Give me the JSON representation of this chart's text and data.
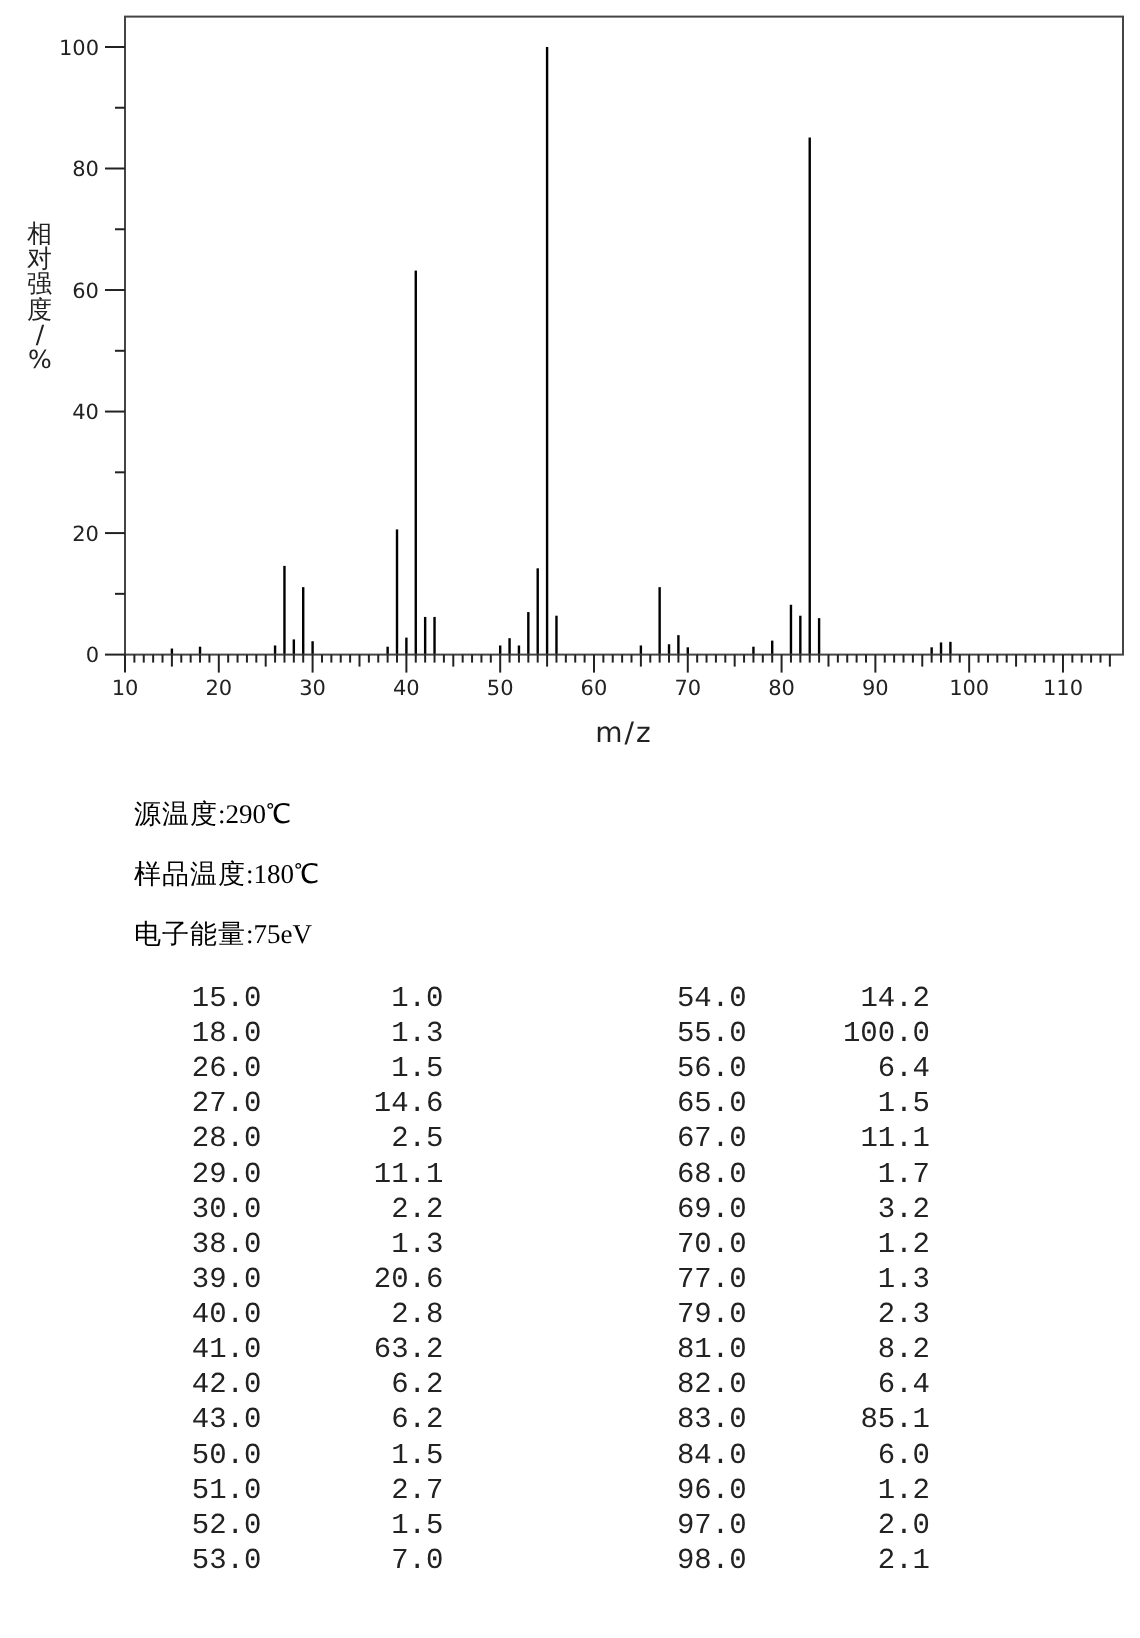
{
  "chart_data": [
    {
      "type": "bar",
      "xlabel": "m/z",
      "ylabel": "相对强度/%",
      "x": [
        15,
        18,
        26,
        27,
        28,
        29,
        30,
        38,
        39,
        40,
        41,
        42,
        43,
        50,
        51,
        52,
        53,
        54,
        55,
        56,
        65,
        67,
        68,
        69,
        70,
        77,
        79,
        81,
        82,
        83,
        84,
        96,
        97,
        98
      ],
      "values": [
        1.0,
        1.3,
        1.5,
        14.6,
        2.5,
        11.1,
        2.2,
        1.3,
        20.6,
        2.8,
        63.2,
        6.2,
        6.2,
        1.5,
        2.7,
        1.5,
        7.0,
        14.2,
        100.0,
        6.4,
        1.5,
        11.1,
        1.7,
        3.2,
        1.2,
        1.3,
        2.3,
        8.2,
        6.4,
        85.1,
        6.0,
        1.2,
        2.0,
        2.1
      ],
      "color": "#000000",
      "xlim": [
        10,
        116.4
      ],
      "ylim": [
        0,
        105
      ],
      "xticks": [
        10,
        {
          "value": 11,
          "label": null
        },
        {
          "value": 12,
          "label": null
        },
        {
          "value": 13,
          "label": null
        },
        {
          "value": 14,
          "label": null
        },
        {
          "value": 15,
          "label": null
        },
        {
          "value": 16,
          "label": null
        },
        {
          "value": 17,
          "label": null
        },
        {
          "value": 18,
          "label": null
        },
        {
          "value": 19,
          "label": null
        },
        20,
        {
          "value": 21,
          "label": null
        },
        {
          "value": 22,
          "label": null
        },
        {
          "value": 23,
          "label": null
        },
        {
          "value": 24,
          "label": null
        },
        {
          "value": 25,
          "label": null
        },
        {
          "value": 26,
          "label": null
        },
        {
          "value": 27,
          "label": null
        },
        {
          "value": 28,
          "label": null
        },
        {
          "value": 29,
          "label": null
        },
        30,
        {
          "value": 31,
          "label": null
        },
        {
          "value": 32,
          "label": null
        },
        {
          "value": 33,
          "label": null
        },
        {
          "value": 34,
          "label": null
        },
        {
          "value": 35,
          "label": null
        },
        {
          "value": 36,
          "label": null
        },
        {
          "value": 37,
          "label": null
        },
        {
          "value": 38,
          "label": null
        },
        {
          "value": 39,
          "label": null
        },
        40,
        {
          "value": 41,
          "label": null
        },
        {
          "value": 42,
          "label": null
        },
        {
          "value": 43,
          "label": null
        },
        {
          "value": 44,
          "label": null
        },
        {
          "value": 45,
          "label": null
        },
        {
          "value": 46,
          "label": null
        },
        {
          "value": 47,
          "label": null
        },
        {
          "value": 48,
          "label": null
        },
        {
          "value": 49,
          "label": null
        },
        50,
        {
          "value": 51,
          "label": null
        },
        {
          "value": 52,
          "label": null
        },
        {
          "value": 53,
          "label": null
        },
        {
          "value": 54,
          "label": null
        },
        {
          "value": 55,
          "label": null
        },
        {
          "value": 56,
          "label": null
        },
        {
          "value": 57,
          "label": null
        },
        {
          "value": 58,
          "label": null
        },
        {
          "value": 59,
          "label": null
        },
        60,
        {
          "value": 61,
          "label": null
        },
        {
          "value": 62,
          "label": null
        },
        {
          "value": 63,
          "label": null
        },
        {
          "value": 64,
          "label": null
        },
        {
          "value": 65,
          "label": null
        },
        {
          "value": 66,
          "label": null
        },
        {
          "value": 67,
          "label": null
        },
        {
          "value": 68,
          "label": null
        },
        {
          "value": 69,
          "label": null
        },
        70,
        {
          "value": 71,
          "label": null
        },
        {
          "value": 72,
          "label": null
        },
        {
          "value": 73,
          "label": null
        },
        {
          "value": 74,
          "label": null
        },
        {
          "value": 75,
          "label": null
        },
        {
          "value": 76,
          "label": null
        },
        {
          "value": 77,
          "label": null
        },
        {
          "value": 78,
          "label": null
        },
        {
          "value": 79,
          "label": null
        },
        80,
        {
          "value": 81,
          "label": null
        },
        {
          "value": 82,
          "label": null
        },
        {
          "value": 83,
          "label": null
        },
        {
          "value": 84,
          "label": null
        },
        {
          "value": 85,
          "label": null
        },
        {
          "value": 86,
          "label": null
        },
        {
          "value": 87,
          "label": null
        },
        {
          "value": 88,
          "label": null
        },
        {
          "value": 89,
          "label": null
        },
        90,
        {
          "value": 91,
          "label": null
        },
        {
          "value": 92,
          "label": null
        },
        {
          "value": 93,
          "label": null
        },
        {
          "value": 94,
          "label": null
        },
        {
          "value": 95,
          "label": null
        },
        {
          "value": 96,
          "label": null
        },
        {
          "value": 97,
          "label": null
        },
        {
          "value": 98,
          "label": null
        },
        {
          "value": 99,
          "label": null
        },
        100,
        {
          "value": 101,
          "label": null
        },
        {
          "value": 102,
          "label": null
        },
        {
          "value": 103,
          "label": null
        },
        {
          "value": 104,
          "label": null
        },
        {
          "value": 105,
          "label": null
        },
        {
          "value": 106,
          "label": null
        },
        {
          "value": 107,
          "label": null
        },
        {
          "value": 108,
          "label": null
        },
        {
          "value": 109,
          "label": null
        },
        110,
        {
          "value": 111,
          "label": null
        },
        {
          "value": 112,
          "label": null
        },
        {
          "value": 113,
          "label": null
        },
        {
          "value": 114,
          "label": null
        },
        {
          "value": 115,
          "label": null
        }
      ],
      "yticks": [
        0,
        {
          "value": 10,
          "label": null
        },
        20,
        {
          "value": 30,
          "label": null
        },
        40,
        {
          "value": 50,
          "label": null
        },
        60,
        {
          "value": 70,
          "label": null
        },
        80,
        {
          "value": 90,
          "label": null
        },
        100
      ],
      "annotations": [
        "源温度:290℃",
        "样品温度:180℃",
        "电子能量:75eV"
      ]
    },
    {
      "type": "other",
      "annotations": [
        "15.0",
        "1.0",
        "54.0",
        "14.2",
        "18.0",
        "1.3",
        "55.0",
        "100.0",
        "26.0",
        "1.5",
        "56.0",
        "6.4",
        "27.0",
        "14.6",
        "65.0",
        "1.5",
        "28.0",
        "2.5",
        "67.0",
        "11.1",
        "29.0",
        "11.1",
        "68.0",
        "1.7",
        "30.0",
        "2.2",
        "69.0",
        "3.2",
        "38.0",
        "1.3",
        "70.0",
        "1.2",
        "39.0",
        "20.6",
        "77.0",
        "1.3",
        "40.0",
        "2.8",
        "79.0",
        "2.3",
        "41.0",
        "63.2",
        "81.0",
        "8.2",
        "42.0",
        "6.2",
        "82.0",
        "6.4",
        "43.0",
        "6.2",
        "83.0",
        "85.1",
        "50.0",
        "1.5",
        "84.0",
        "6.0",
        "51.0",
        "2.7",
        "96.0",
        "1.2",
        "52.0",
        "1.5",
        "97.0",
        "2.0",
        "53.0",
        "7.0",
        "98.0",
        "2.1"
      ]
    }
  ]
}
